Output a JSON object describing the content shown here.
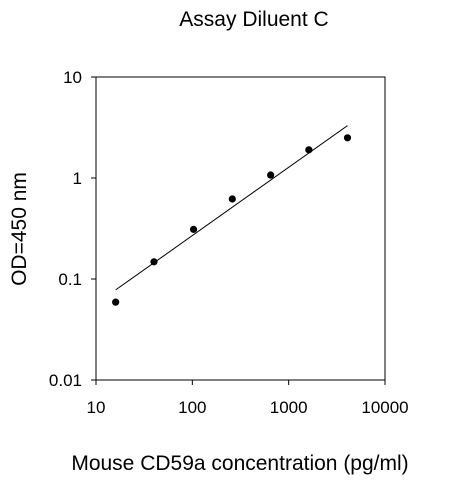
{
  "chart_data": {
    "type": "scatter",
    "title": "Assay Diluent C",
    "xlabel": "Mouse CD59a concentration (pg/ml)",
    "ylabel": "OD=450 nm",
    "x_scale": "log",
    "y_scale": "log",
    "xlim": [
      10,
      10000
    ],
    "ylim": [
      0.01,
      10
    ],
    "x_ticks": [
      "10",
      "100",
      "1000",
      "10000"
    ],
    "y_ticks": [
      "0.01",
      "0.1",
      "1",
      "10"
    ],
    "grid": false,
    "legend": "none",
    "series": [
      {
        "x": [
          16,
          40,
          103,
          260,
          650,
          1620,
          4080
        ],
        "y": [
          0.059,
          0.148,
          0.31,
          0.62,
          1.07,
          1.9,
          2.5
        ]
      }
    ],
    "fit_line": {
      "x": [
        16,
        4080
      ],
      "y": [
        0.078,
        3.3
      ]
    }
  }
}
